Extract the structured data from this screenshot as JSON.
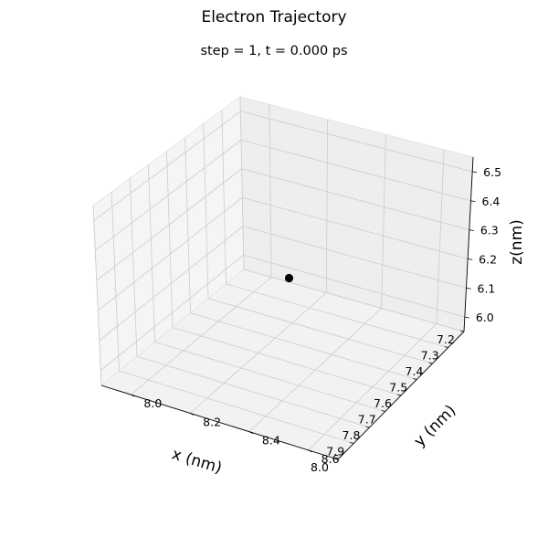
{
  "chart_data": {
    "type": "scatter",
    "title": "Electron Trajectory",
    "subtitle": "step = 1, t = 0.000 ps",
    "xlabel": "x (nm)",
    "ylabel": "y (nm)",
    "zlabel": "z(nm)",
    "xlim": [
      7.2,
      8.0
    ],
    "ylim": [
      7.9,
      8.7
    ],
    "zlim": [
      5.95,
      6.55
    ],
    "x_ticks": [
      "7.2",
      "7.3",
      "7.4",
      "7.5",
      "7.6",
      "7.7",
      "7.8",
      "7.9",
      "8.0"
    ],
    "y_ticks": [
      "8.0",
      "8.2",
      "8.4",
      "8.6"
    ],
    "z_ticks": [
      "6.0",
      "6.1",
      "6.2",
      "6.3",
      "6.4",
      "6.5"
    ],
    "points": [
      {
        "x": 7.6,
        "y": 8.3,
        "z": 6.25
      }
    ],
    "point_color": "#000000",
    "grid": true,
    "projection": "3d"
  }
}
